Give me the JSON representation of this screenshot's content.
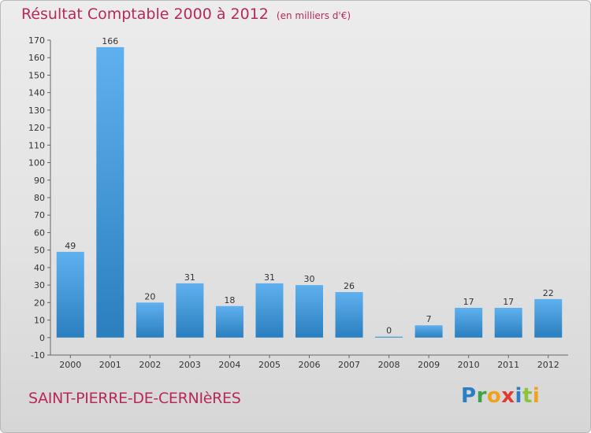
{
  "title": "Résultat Comptable 2000 à 2012",
  "subtitle": "(en milliers d'€)",
  "footer": {
    "location": "SAINT-PIERRE-DE-CERNIèRES"
  },
  "brand": {
    "letters": [
      "P",
      "r",
      "o",
      "x",
      "i",
      "t",
      "i"
    ],
    "colors": [
      "#2a7fc4",
      "#3ca545",
      "#f0a21d",
      "#e23a2e",
      "#2a7fc4",
      "#8bc43f",
      "#f0a21d"
    ]
  },
  "colors": {
    "bar_light": "#5fb0ee",
    "bar_dark": "#2b7fbe",
    "title": "#b8295b"
  },
  "chart_data": {
    "type": "bar",
    "categories": [
      "2000",
      "2001",
      "2002",
      "2003",
      "2004",
      "2005",
      "2006",
      "2007",
      "2008",
      "2009",
      "2010",
      "2011",
      "2012"
    ],
    "values": [
      49,
      166,
      20,
      31,
      18,
      31,
      30,
      26,
      0,
      7,
      17,
      17,
      22
    ],
    "data_labels": [
      "49",
      "166",
      "20",
      "31",
      "18",
      "31",
      "30",
      "26",
      "0",
      "7",
      "17",
      "17",
      "22"
    ],
    "ylim": [
      -10,
      170
    ],
    "yticks": [
      -10,
      0,
      10,
      20,
      30,
      40,
      50,
      60,
      70,
      80,
      90,
      100,
      110,
      120,
      130,
      140,
      150,
      160,
      170
    ],
    "grid": false,
    "legend": "none"
  }
}
